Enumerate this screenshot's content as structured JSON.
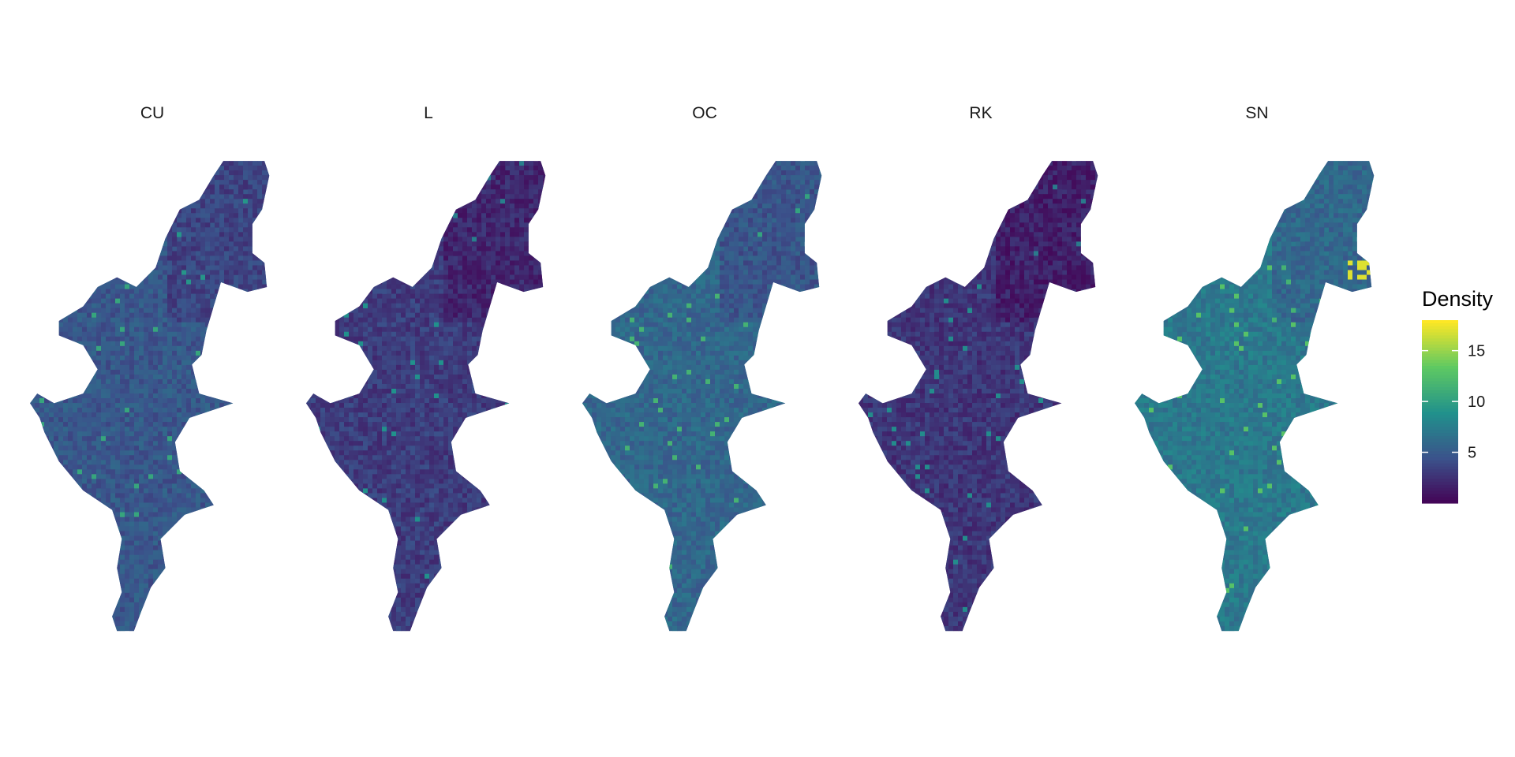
{
  "chart_data": {
    "type": "heatmap",
    "panels": [
      {
        "label": "CU",
        "level": 0.27
      },
      {
        "label": "L",
        "level": 0.18
      },
      {
        "label": "OC",
        "level": 0.33
      },
      {
        "label": "RK",
        "level": 0.16
      },
      {
        "label": "SN",
        "level": 0.4
      }
    ],
    "legend": {
      "title": "Density",
      "placement": "right",
      "min": 0,
      "max": 18,
      "ticks": [
        {
          "value": 5,
          "label": "5"
        },
        {
          "value": 10,
          "label": "10"
        },
        {
          "value": 15,
          "label": "15"
        }
      ],
      "colorscale": [
        "#440154",
        "#3b528b",
        "#21918c",
        "#5ec962",
        "#fde725"
      ]
    },
    "grid": false,
    "axes": false
  }
}
